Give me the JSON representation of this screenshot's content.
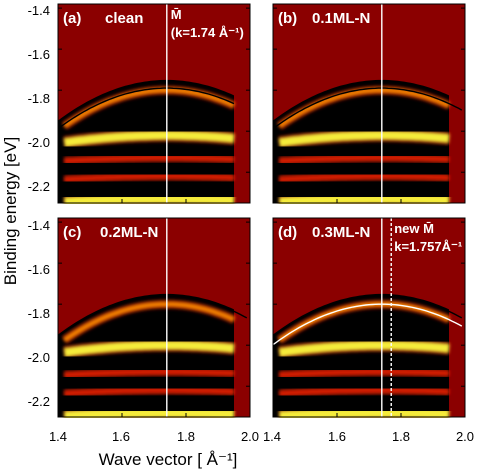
{
  "chart_data": {
    "type": "heatmap",
    "xlabel": "Wave vector [ Å⁻¹]",
    "ylabel": "Binding energy [eV]",
    "xlim": [
      1.4,
      2.0
    ],
    "ylim": [
      -2.35,
      -1.38
    ],
    "x_ticks": [
      "1.4",
      "1.6",
      "1.8",
      "2.0"
    ],
    "y_ticks": [
      "-1.4",
      "-1.6",
      "-1.8",
      "-2.0",
      "-2.2"
    ],
    "colormap": [
      "#000000",
      "#8b0000",
      "#e02000",
      "#ff8c00",
      "#ffff40"
    ],
    "panels": [
      {
        "label": "(a)",
        "title": "clean",
        "annotation": [
          "M̄",
          "(k=1.74 Å⁻¹)"
        ],
        "m_point_k": 1.74,
        "dashed_k": null,
        "bands_energy": [
          -1.8,
          -2.02,
          -2.13,
          -2.22,
          -2.33
        ],
        "fits": [
          {
            "color": "#000000",
            "apex_energy": -1.81
          }
        ]
      },
      {
        "label": "(b)",
        "title": "0.1ML-N",
        "annotation": [],
        "m_point_k": 1.74,
        "dashed_k": null,
        "bands_energy": [
          -1.8,
          -2.02,
          -2.13,
          -2.22,
          -2.33
        ],
        "fits": [
          {
            "color": "#000000",
            "apex_energy": -1.81
          }
        ]
      },
      {
        "label": "(c)",
        "title": "0.2ML-N",
        "annotation": [],
        "m_point_k": 1.74,
        "dashed_k": null,
        "bands_energy": [
          -1.8,
          -2.0,
          -2.13,
          -2.22,
          -2.33
        ],
        "fits": [
          {
            "color": "#000000",
            "apex_energy": -1.78
          }
        ]
      },
      {
        "label": "(d)",
        "title": "0.3ML-N",
        "annotation": [
          "new M̄",
          "k=1.757Å⁻¹"
        ],
        "m_point_k": 1.74,
        "dashed_k": 1.757,
        "bands_energy": [
          -1.8,
          -2.0,
          -2.13,
          -2.22,
          -2.33
        ],
        "fits": [
          {
            "color": "#000000",
            "apex_energy": -1.78
          },
          {
            "color": "#ffffff",
            "apex_energy": -1.82
          }
        ]
      }
    ]
  }
}
